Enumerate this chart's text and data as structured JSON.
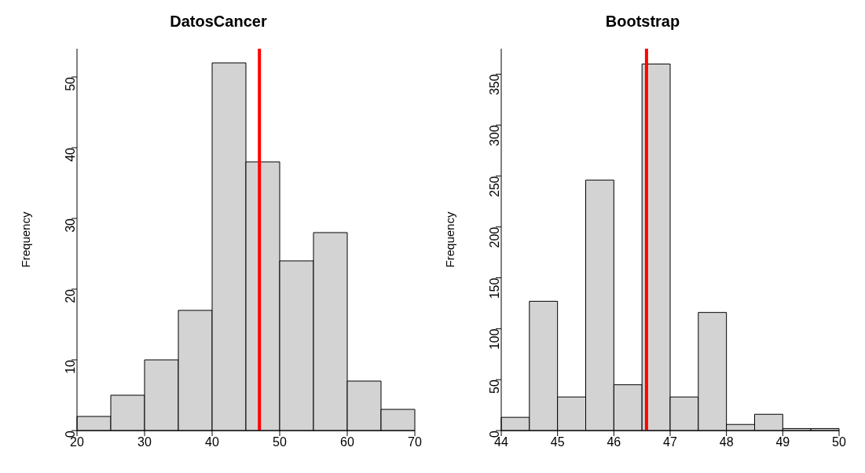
{
  "chart_data": [
    {
      "type": "histogram",
      "title": "DatosCancer",
      "ylabel": "Frequency",
      "bins": [
        20,
        25,
        30,
        35,
        40,
        45,
        50,
        55,
        60,
        65,
        70
      ],
      "values": [
        2,
        5,
        10,
        17,
        52,
        38,
        24,
        28,
        7,
        3
      ],
      "color": "#d3d3d3",
      "xlim": [
        20,
        70
      ],
      "xticks": [
        20,
        30,
        40,
        50,
        60,
        70
      ],
      "ylim": [
        0,
        54
      ],
      "yticks": [
        0,
        10,
        20,
        30,
        40,
        50
      ],
      "grid": false,
      "ref_lines": [
        {
          "axis": "x",
          "value": 47,
          "color": "#ff0000"
        }
      ]
    },
    {
      "type": "histogram",
      "title": "Bootstrap",
      "ylabel": "Frequency",
      "bins": [
        44,
        44.5,
        45,
        45.5,
        46,
        46.5,
        47,
        47.5,
        48,
        48.5,
        49,
        49.5,
        50
      ],
      "values": [
        13,
        127,
        33,
        246,
        45,
        360,
        33,
        116,
        6,
        16,
        2,
        2
      ],
      "color": "#d3d3d3",
      "xlim": [
        44,
        50
      ],
      "xticks": [
        44,
        45,
        46,
        47,
        48,
        49,
        50
      ],
      "ylim": [
        0,
        375
      ],
      "yticks": [
        0,
        50,
        100,
        150,
        200,
        250,
        300,
        350
      ],
      "grid": false,
      "ref_lines": [
        {
          "axis": "x",
          "value": 46.58,
          "color": "#ff0000"
        }
      ]
    }
  ]
}
